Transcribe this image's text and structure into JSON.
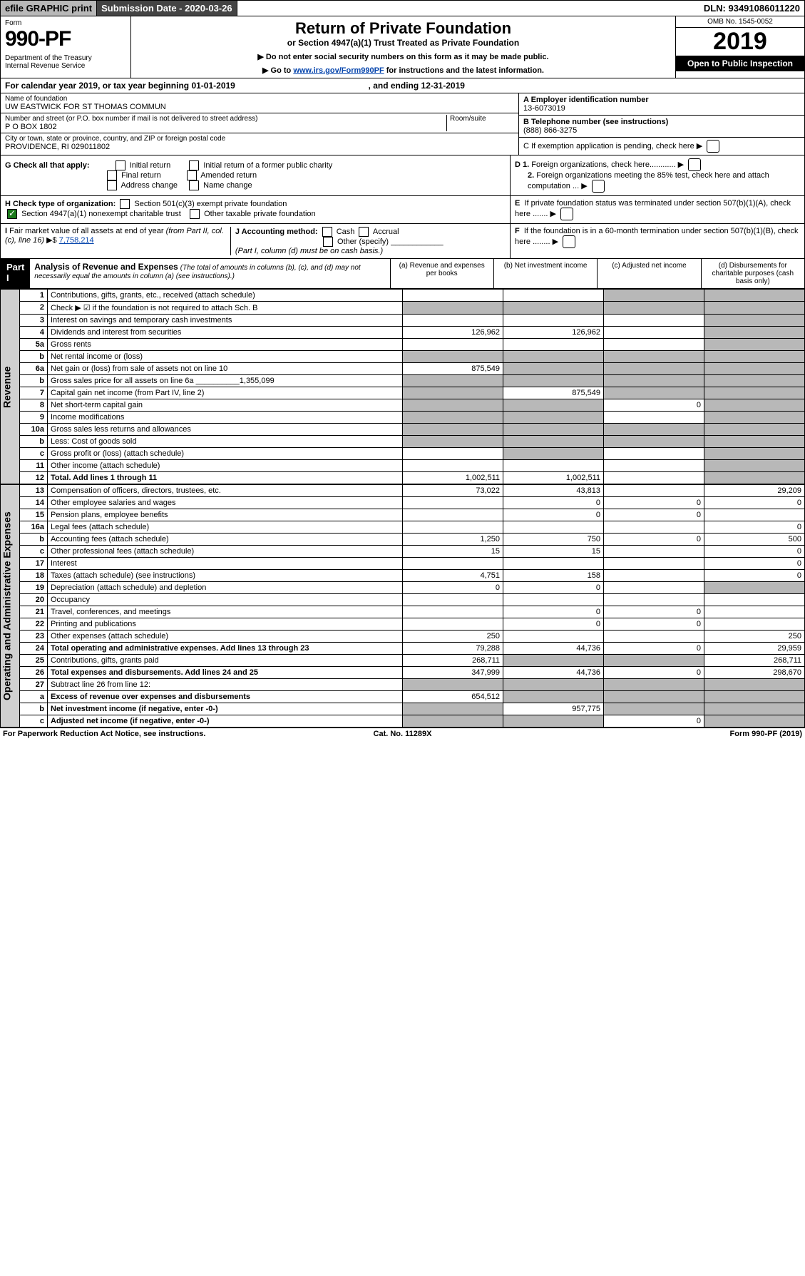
{
  "top": {
    "efile": "efile GRAPHIC print",
    "subdate": "Submission Date - 2020-03-26",
    "dln": "DLN: 93491086011220"
  },
  "hdr": {
    "formlbl": "Form",
    "formnum": "990-PF",
    "dept": "Department of the Treasury\nInternal Revenue Service",
    "title": "Return of Private Foundation",
    "sub": "or Section 4947(a)(1) Trust Treated as Private Foundation",
    "inst1": "▶ Do not enter social security numbers on this form as it may be made public.",
    "inst2": "▶ Go to ",
    "inst2link": "www.irs.gov/Form990PF",
    "inst2end": " for instructions and the latest information.",
    "omb": "OMB No. 1545-0052",
    "year": "2019",
    "open": "Open to Public Inspection"
  },
  "cal": {
    "pre": "For calendar year 2019, or tax year beginning ",
    "b": "01-01-2019",
    "mid": ", and ending ",
    "e": "12-31-2019"
  },
  "ent": {
    "namelbl": "Name of foundation",
    "name": "UW EASTWICK FOR ST THOMAS COMMUN",
    "addrlbl": "Number and street (or P.O. box number if mail is not delivered to street address)",
    "room": "Room/suite",
    "addr": "P O BOX 1802",
    "citylbl": "City or town, state or province, country, and ZIP or foreign postal code",
    "city": "PROVIDENCE, RI  029011802",
    "A": "A Employer identification number",
    "Aval": "13-6073019",
    "B": "B Telephone number (see instructions)",
    "Bval": "(888) 866-3275",
    "C": "C If exemption application is pending, check here",
    "D1": "D 1. Foreign organizations, check here............",
    "D2": "2. Foreign organizations meeting the 85% test, check here and attach computation ...",
    "E": "E  If private foundation status was terminated under section 507(b)(1)(A), check here .......",
    "F": "F  If the foundation is in a 60-month termination under section 507(b)(1)(B), check here ........"
  },
  "G": {
    "lbl": "G Check all that apply:",
    "o": [
      "Initial return",
      "Initial return of a former public charity",
      "Final return",
      "Amended return",
      "Address change",
      "Name change"
    ]
  },
  "H": {
    "lbl": "H Check type of organization:",
    "o": [
      "Section 501(c)(3) exempt private foundation",
      "Section 4947(a)(1) nonexempt charitable trust",
      "Other taxable private foundation"
    ]
  },
  "I": {
    "lbl": "I Fair market value of all assets at end of year (from Part II, col. (c), line 16) ▶$ ",
    "val": "7,758,214"
  },
  "J": {
    "lbl": "J Accounting method:",
    "o": [
      "Cash",
      "Accrual",
      "Other (specify)"
    ],
    "note": "(Part I, column (d) must be on cash basis.)"
  },
  "p1": {
    "title": "Part I",
    "head": "Analysis of Revenue and Expenses",
    "sub": "(The total of amounts in columns (b), (c), and (d) may not necessarily equal the amounts in column (a) (see instructions).)",
    "ca": "(a)  Revenue and expenses per books",
    "cb": "(b)  Net investment income",
    "cc": "(c)  Adjusted net income",
    "cd": "(d)  Disbursements for charitable purposes (cash basis only)"
  },
  "side": {
    "rev": "Revenue",
    "exp": "Operating and Administrative Expenses"
  },
  "rows": [
    {
      "n": "1",
      "d": "Contributions, gifts, grants, etc., received (attach schedule)",
      "a": "",
      "b": "",
      "sh": [
        "c",
        "d"
      ]
    },
    {
      "n": "2",
      "d": "Check ▶ ☑ if the foundation is not required to attach Sch. B",
      "a": "",
      "b": "",
      "sh": [
        "a",
        "b",
        "c",
        "d"
      ]
    },
    {
      "n": "3",
      "d": "Interest on savings and temporary cash investments",
      "a": "",
      "b": "",
      "c": "",
      "sh": [
        "d"
      ]
    },
    {
      "n": "4",
      "d": "Dividends and interest from securities",
      "a": "126,962",
      "b": "126,962",
      "c": "",
      "sh": [
        "d"
      ]
    },
    {
      "n": "5a",
      "d": "Gross rents",
      "a": "",
      "b": "",
      "c": "",
      "sh": [
        "d"
      ]
    },
    {
      "n": "b",
      "d": "Net rental income or (loss)",
      "sh": [
        "a",
        "b",
        "c",
        "d"
      ]
    },
    {
      "n": "6a",
      "d": "Net gain or (loss) from sale of assets not on line 10",
      "a": "875,549",
      "sh": [
        "b",
        "c",
        "d"
      ]
    },
    {
      "n": "b",
      "d": "Gross sales price for all assets on line 6a __________1,355,099",
      "sh": [
        "a",
        "b",
        "c",
        "d"
      ]
    },
    {
      "n": "7",
      "d": "Capital gain net income (from Part IV, line 2)",
      "b": "875,549",
      "sh": [
        "a",
        "c",
        "d"
      ]
    },
    {
      "n": "8",
      "d": "Net short-term capital gain",
      "c": "0",
      "sh": [
        "a",
        "b",
        "d"
      ]
    },
    {
      "n": "9",
      "d": "Income modifications",
      "sh": [
        "a",
        "b",
        "d"
      ],
      "c": ""
    },
    {
      "n": "10a",
      "d": "Gross sales less returns and allowances",
      "sh": [
        "a",
        "b",
        "c",
        "d"
      ]
    },
    {
      "n": "b",
      "d": "Less: Cost of goods sold",
      "sh": [
        "a",
        "b",
        "c",
        "d"
      ]
    },
    {
      "n": "c",
      "d": "Gross profit or (loss) (attach schedule)",
      "a": "",
      "c": "",
      "sh": [
        "b",
        "d"
      ]
    },
    {
      "n": "11",
      "d": "Other income (attach schedule)",
      "a": "",
      "b": "",
      "c": "",
      "sh": [
        "d"
      ]
    },
    {
      "n": "12",
      "d": "Total. Add lines 1 through 11",
      "a": "1,002,511",
      "b": "1,002,511",
      "c": "",
      "sh": [
        "d"
      ],
      "bold": true
    }
  ],
  "rows2": [
    {
      "n": "13",
      "d": "Compensation of officers, directors, trustees, etc.",
      "a": "73,022",
      "b": "43,813",
      "c": "",
      "dd": "29,209"
    },
    {
      "n": "14",
      "d": "Other employee salaries and wages",
      "a": "",
      "b": "0",
      "c": "0",
      "dd": "0"
    },
    {
      "n": "15",
      "d": "Pension plans, employee benefits",
      "a": "",
      "b": "0",
      "c": "0",
      "dd": ""
    },
    {
      "n": "16a",
      "d": "Legal fees (attach schedule)",
      "a": "",
      "b": "",
      "c": "",
      "dd": "0"
    },
    {
      "n": "b",
      "d": "Accounting fees (attach schedule)",
      "a": "1,250",
      "b": "750",
      "c": "0",
      "dd": "500"
    },
    {
      "n": "c",
      "d": "Other professional fees (attach schedule)",
      "a": "15",
      "b": "15",
      "c": "",
      "dd": "0"
    },
    {
      "n": "17",
      "d": "Interest",
      "a": "",
      "b": "",
      "c": "",
      "dd": "0"
    },
    {
      "n": "18",
      "d": "Taxes (attach schedule) (see instructions)",
      "a": "4,751",
      "b": "158",
      "c": "",
      "dd": "0"
    },
    {
      "n": "19",
      "d": "Depreciation (attach schedule) and depletion",
      "a": "0",
      "b": "0",
      "c": "",
      "sh": [
        "d"
      ]
    },
    {
      "n": "20",
      "d": "Occupancy",
      "a": "",
      "b": "",
      "c": "",
      "dd": ""
    },
    {
      "n": "21",
      "d": "Travel, conferences, and meetings",
      "a": "",
      "b": "0",
      "c": "0",
      "dd": ""
    },
    {
      "n": "22",
      "d": "Printing and publications",
      "a": "",
      "b": "0",
      "c": "0",
      "dd": ""
    },
    {
      "n": "23",
      "d": "Other expenses (attach schedule)",
      "a": "250",
      "b": "",
      "c": "",
      "dd": "250"
    },
    {
      "n": "24",
      "d": "Total operating and administrative expenses. Add lines 13 through 23",
      "a": "79,288",
      "b": "44,736",
      "c": "0",
      "dd": "29,959",
      "bold": true
    },
    {
      "n": "25",
      "d": "Contributions, gifts, grants paid",
      "a": "268,711",
      "sh": [
        "b",
        "c"
      ],
      "dd": "268,711"
    },
    {
      "n": "26",
      "d": "Total expenses and disbursements. Add lines 24 and 25",
      "a": "347,999",
      "b": "44,736",
      "c": "0",
      "dd": "298,670",
      "bold": true
    },
    {
      "n": "27",
      "d": "Subtract line 26 from line 12:",
      "sh": [
        "a",
        "b",
        "c",
        "d"
      ]
    },
    {
      "n": "a",
      "d": "Excess of revenue over expenses and disbursements",
      "a": "654,512",
      "sh": [
        "b",
        "c",
        "d"
      ],
      "bold": true
    },
    {
      "n": "b",
      "d": "Net investment income (if negative, enter -0-)",
      "b": "957,775",
      "sh": [
        "a",
        "c",
        "d"
      ],
      "bold": true
    },
    {
      "n": "c",
      "d": "Adjusted net income (if negative, enter -0-)",
      "c": "0",
      "sh": [
        "a",
        "b",
        "d"
      ],
      "bold": true
    }
  ],
  "foot": {
    "l": "For Paperwork Reduction Act Notice, see instructions.",
    "m": "Cat. No. 11289X",
    "r": "Form 990-PF (2019)"
  }
}
